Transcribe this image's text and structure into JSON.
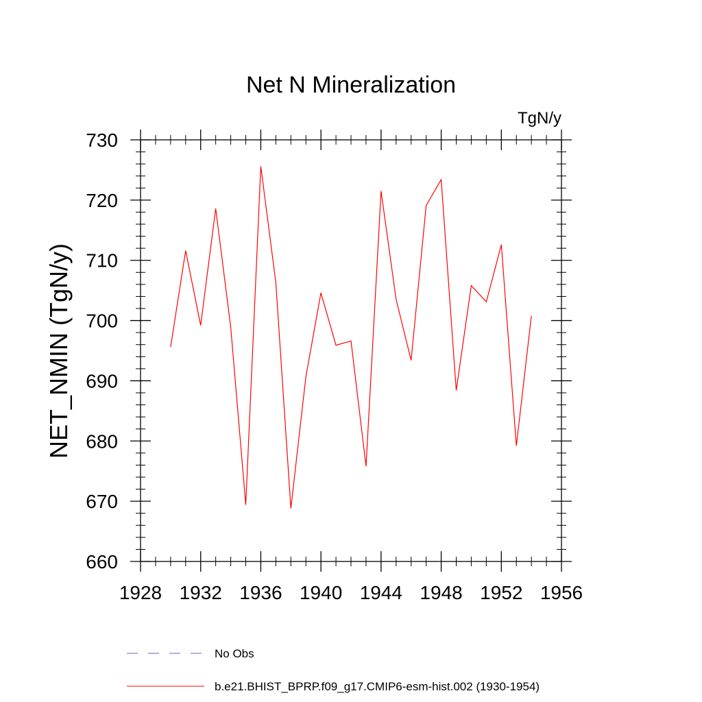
{
  "chart_data": {
    "type": "line",
    "title": "Net N Mineralization",
    "units_label": "TgN/y",
    "xlabel": "",
    "ylabel": "NET_NMIN  (TgN/y)",
    "xlim": [
      1928,
      1956
    ],
    "ylim": [
      660,
      730
    ],
    "x_ticks": [
      1928,
      1932,
      1936,
      1940,
      1944,
      1948,
      1952,
      1956
    ],
    "y_ticks": [
      660,
      670,
      680,
      690,
      700,
      710,
      720,
      730
    ],
    "grid": false,
    "legend_position": "bottom",
    "series": [
      {
        "name": "b.e21.BHIST_BPRP.f09_g17.CMIP6-esm-hist.002 (1930-1954)",
        "color": "#ff0000",
        "style": "solid",
        "x": [
          1930,
          1931,
          1932,
          1933,
          1934,
          1935,
          1936,
          1937,
          1938,
          1939,
          1940,
          1941,
          1942,
          1943,
          1944,
          1945,
          1946,
          1947,
          1948,
          1949,
          1950,
          1951,
          1952,
          1953,
          1954
        ],
        "values": [
          695.6,
          711.6,
          699.2,
          718.6,
          698.9,
          669.4,
          725.6,
          706.3,
          668.8,
          690.7,
          704.6,
          695.9,
          696.6,
          675.8,
          721.5,
          703.5,
          693.4,
          719.1,
          723.4,
          688.4,
          705.8,
          703.1,
          712.6,
          679.2,
          700.8
        ]
      }
    ],
    "legend": [
      {
        "label": "No Obs",
        "color": "#6a5acd",
        "style": "dashed"
      },
      {
        "label": "b.e21.BHIST_BPRP.f09_g17.CMIP6-esm-hist.002 (1930-1954)",
        "color": "#ff0000",
        "style": "solid"
      }
    ]
  }
}
